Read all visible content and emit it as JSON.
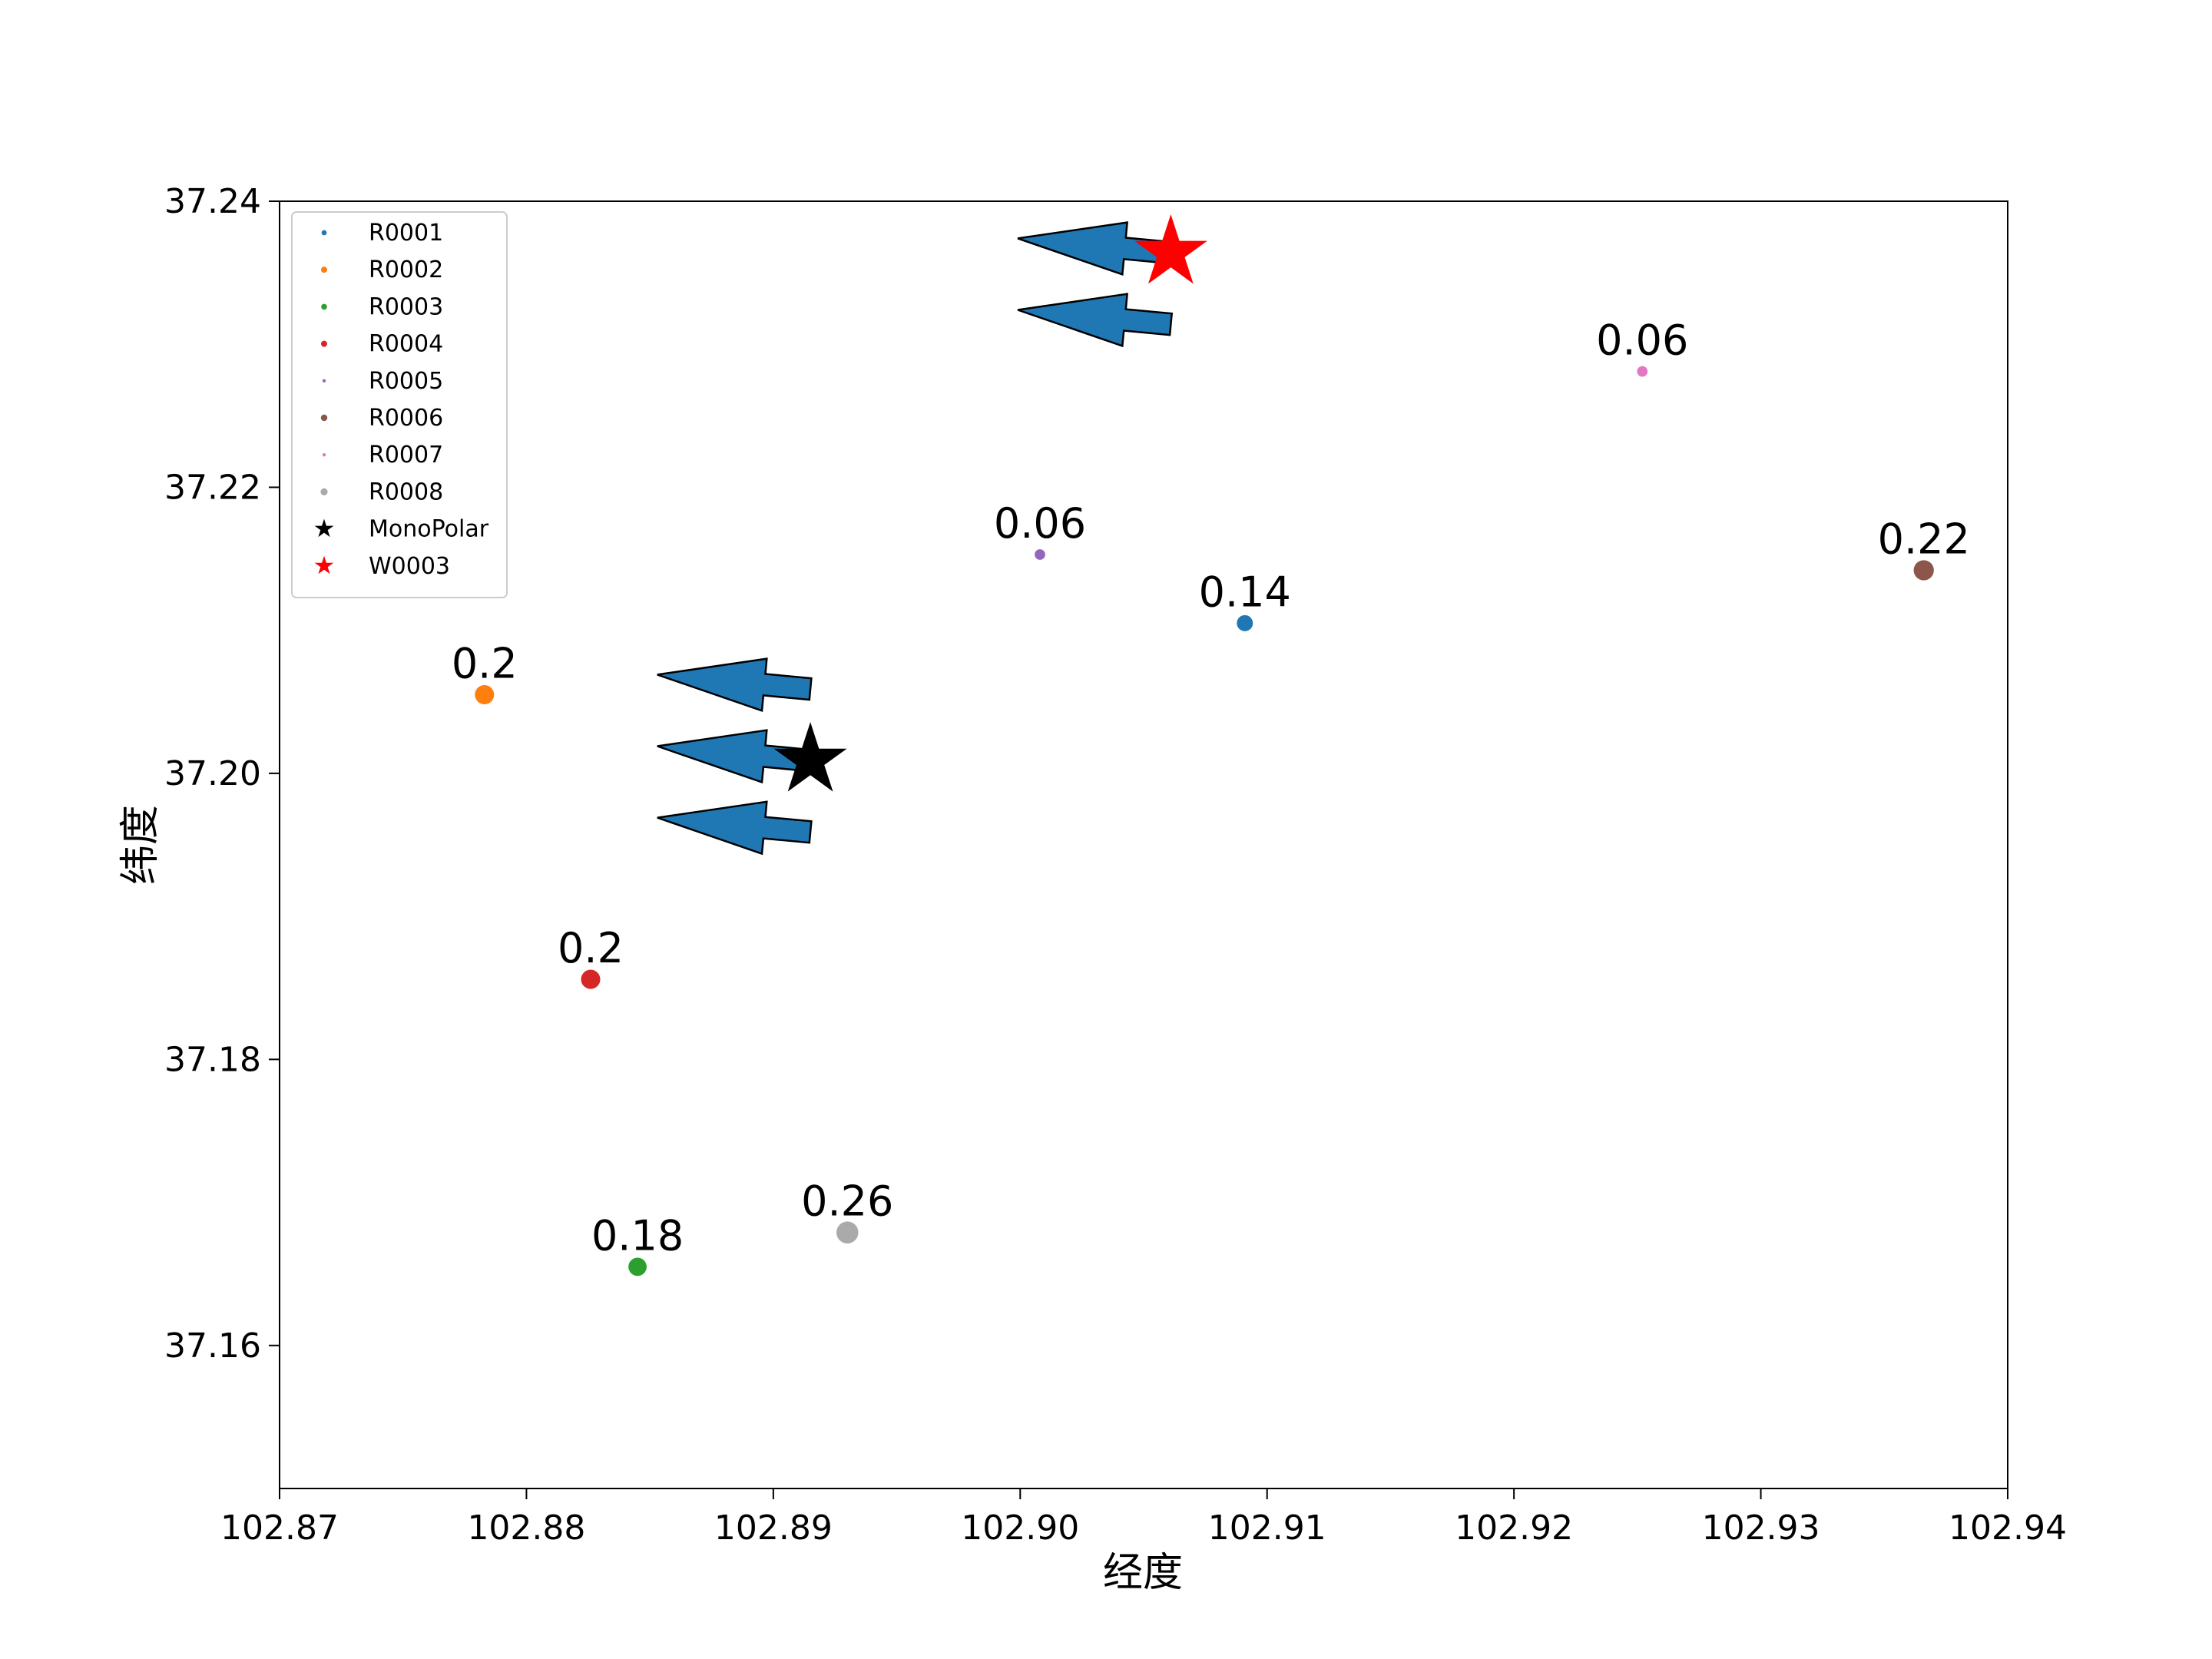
{
  "chart_data": {
    "type": "scatter",
    "title": "",
    "xlabel": "经度",
    "ylabel": "纬度",
    "xlim": [
      102.87,
      102.94
    ],
    "ylim": [
      37.15,
      37.24
    ],
    "xticks": [
      102.87,
      102.88,
      102.89,
      102.9,
      102.91,
      102.92,
      102.93,
      102.94
    ],
    "xtick_labels": [
      "102.87",
      "102.88",
      "102.89",
      "102.90",
      "102.91",
      "102.92",
      "102.93",
      "102.94"
    ],
    "yticks": [
      37.16,
      37.18,
      37.2,
      37.22,
      37.24
    ],
    "ytick_labels": [
      "37.16",
      "37.18",
      "37.20",
      "37.22",
      "37.24"
    ],
    "grid": false,
    "legend_position": "top-left",
    "series": [
      {
        "name": "R0001",
        "x": 102.9091,
        "y": 37.2105,
        "value": 0.14,
        "label": "0.14",
        "color": "#1f77b4",
        "marker": "circle"
      },
      {
        "name": "R0002",
        "x": 102.8783,
        "y": 37.2055,
        "value": 0.2,
        "label": "0.2",
        "color": "#ff7f0e",
        "marker": "circle"
      },
      {
        "name": "R0003",
        "x": 102.8845,
        "y": 37.1655,
        "value": 0.18,
        "label": "0.18",
        "color": "#2ca02c",
        "marker": "circle"
      },
      {
        "name": "R0004",
        "x": 102.8826,
        "y": 37.1856,
        "value": 0.2,
        "label": "0.2",
        "color": "#d62728",
        "marker": "circle"
      },
      {
        "name": "R0005",
        "x": 102.9008,
        "y": 37.2153,
        "value": 0.06,
        "label": "0.06",
        "color": "#9467bd",
        "marker": "circle"
      },
      {
        "name": "R0006",
        "x": 102.9366,
        "y": 37.2142,
        "value": 0.22,
        "label": "0.22",
        "color": "#8c564b",
        "marker": "circle"
      },
      {
        "name": "R0007",
        "x": 102.9252,
        "y": 37.2281,
        "value": 0.06,
        "label": "0.06",
        "color": "#e377c2",
        "marker": "circle"
      },
      {
        "name": "R0008",
        "x": 102.893,
        "y": 37.1679,
        "value": 0.26,
        "label": "0.26",
        "color": "#aaaaaa",
        "marker": "circle"
      },
      {
        "name": "MonoPolar",
        "x": 102.8915,
        "y": 37.2009,
        "color": "#000000",
        "marker": "star"
      },
      {
        "name": "W0003",
        "x": 102.9061,
        "y": 37.2364,
        "color": "#ff0000",
        "marker": "star"
      }
    ],
    "annotations": {
      "arrow_color": "#1f77b4",
      "arrows": [
        {
          "tail_x": 102.9061,
          "tail_y": 37.2364,
          "head_x": 102.8999,
          "head_y": 37.2374
        },
        {
          "tail_x": 102.9061,
          "tail_y": 37.2314,
          "head_x": 102.8999,
          "head_y": 37.2324
        },
        {
          "tail_x": 102.8915,
          "tail_y": 37.2059,
          "head_x": 102.8853,
          "head_y": 37.2069
        },
        {
          "tail_x": 102.8915,
          "tail_y": 37.2009,
          "head_x": 102.8853,
          "head_y": 37.2019
        },
        {
          "tail_x": 102.8915,
          "tail_y": 37.1959,
          "head_x": 102.8853,
          "head_y": 37.1969
        }
      ]
    }
  }
}
